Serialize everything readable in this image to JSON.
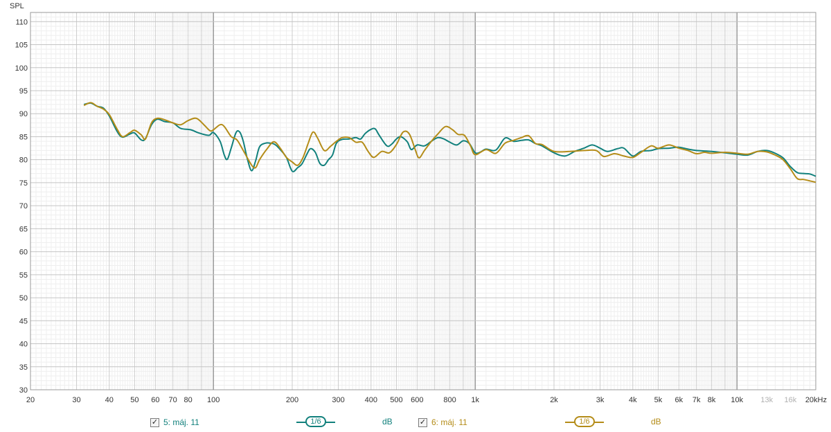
{
  "chart_data": {
    "type": "line",
    "ylabel": "SPL",
    "x_unit_label": "kHz",
    "x_scale": "log",
    "xlim": [
      20,
      20000
    ],
    "ylim": [
      30,
      112
    ],
    "grid": true,
    "y_ticks": [
      30,
      35,
      40,
      45,
      50,
      55,
      60,
      65,
      70,
      75,
      80,
      85,
      90,
      95,
      100,
      105,
      110
    ],
    "x_ticks": [
      {
        "v": 20,
        "label": "20"
      },
      {
        "v": 30,
        "label": "30"
      },
      {
        "v": 40,
        "label": "40"
      },
      {
        "v": 50,
        "label": "50"
      },
      {
        "v": 60,
        "label": "60"
      },
      {
        "v": 70,
        "label": "70"
      },
      {
        "v": 80,
        "label": "80"
      },
      {
        "v": 100,
        "label": "100"
      },
      {
        "v": 200,
        "label": "200"
      },
      {
        "v": 300,
        "label": "300"
      },
      {
        "v": 400,
        "label": "400"
      },
      {
        "v": 500,
        "label": "500"
      },
      {
        "v": 600,
        "label": "600"
      },
      {
        "v": 800,
        "label": "800"
      },
      {
        "v": 1000,
        "label": "1k"
      },
      {
        "v": 2000,
        "label": "2k"
      },
      {
        "v": 3000,
        "label": "3k"
      },
      {
        "v": 4000,
        "label": "4k"
      },
      {
        "v": 5000,
        "label": "5k"
      },
      {
        "v": 6000,
        "label": "6k"
      },
      {
        "v": 7000,
        "label": "7k"
      },
      {
        "v": 8000,
        "label": "8k"
      },
      {
        "v": 10000,
        "label": "10k"
      },
      {
        "v": 13000,
        "label": "13k",
        "faint": true
      },
      {
        "v": 16000,
        "label": "16k",
        "faint": true
      },
      {
        "v": 20000,
        "label": "20kHz"
      }
    ],
    "series": [
      {
        "name": "5: máj. 11",
        "color": "#11807c",
        "smoothing": "1/6",
        "unit": "dB",
        "points": [
          [
            32,
            92.0
          ],
          [
            34,
            92.3
          ],
          [
            36,
            91.6
          ],
          [
            38,
            91.2
          ],
          [
            40,
            89.5
          ],
          [
            43,
            86.0
          ],
          [
            45,
            84.9
          ],
          [
            48,
            85.6
          ],
          [
            50,
            85.8
          ],
          [
            53,
            84.3
          ],
          [
            55,
            84.6
          ],
          [
            58,
            87.6
          ],
          [
            61,
            88.8
          ],
          [
            65,
            88.3
          ],
          [
            70,
            88.0
          ],
          [
            75,
            86.8
          ],
          [
            82,
            86.5
          ],
          [
            88,
            85.8
          ],
          [
            96,
            85.3
          ],
          [
            100,
            85.9
          ],
          [
            106,
            84.0
          ],
          [
            110,
            81.0
          ],
          [
            113,
            80.1
          ],
          [
            117,
            82.6
          ],
          [
            122,
            85.9
          ],
          [
            126,
            86.0
          ],
          [
            130,
            84.0
          ],
          [
            135,
            80.0
          ],
          [
            140,
            77.6
          ],
          [
            145,
            79.8
          ],
          [
            150,
            82.8
          ],
          [
            158,
            83.6
          ],
          [
            165,
            83.6
          ],
          [
            172,
            83.3
          ],
          [
            180,
            82.2
          ],
          [
            190,
            80.5
          ],
          [
            200,
            77.5
          ],
          [
            210,
            78.3
          ],
          [
            218,
            79.1
          ],
          [
            228,
            81.3
          ],
          [
            235,
            82.4
          ],
          [
            245,
            81.6
          ],
          [
            255,
            79.2
          ],
          [
            265,
            78.8
          ],
          [
            275,
            80.0
          ],
          [
            285,
            81.0
          ],
          [
            295,
            83.6
          ],
          [
            310,
            84.4
          ],
          [
            330,
            84.5
          ],
          [
            350,
            84.8
          ],
          [
            365,
            84.5
          ],
          [
            380,
            85.7
          ],
          [
            400,
            86.6
          ],
          [
            415,
            86.7
          ],
          [
            430,
            85.3
          ],
          [
            460,
            83.0
          ],
          [
            480,
            83.4
          ],
          [
            500,
            84.5
          ],
          [
            520,
            85.0
          ],
          [
            550,
            83.9
          ],
          [
            570,
            82.2
          ],
          [
            600,
            83.2
          ],
          [
            640,
            83.0
          ],
          [
            680,
            84.0
          ],
          [
            720,
            84.8
          ],
          [
            760,
            84.5
          ],
          [
            800,
            83.8
          ],
          [
            850,
            83.2
          ],
          [
            900,
            84.1
          ],
          [
            950,
            83.5
          ],
          [
            1000,
            81.5
          ],
          [
            1050,
            81.7
          ],
          [
            1100,
            82.3
          ],
          [
            1200,
            82.1
          ],
          [
            1300,
            84.7
          ],
          [
            1400,
            84.0
          ],
          [
            1500,
            84.2
          ],
          [
            1600,
            84.3
          ],
          [
            1700,
            83.5
          ],
          [
            1800,
            83.0
          ],
          [
            2000,
            81.5
          ],
          [
            2200,
            80.8
          ],
          [
            2400,
            81.8
          ],
          [
            2600,
            82.5
          ],
          [
            2800,
            83.2
          ],
          [
            3000,
            82.5
          ],
          [
            3200,
            81.8
          ],
          [
            3500,
            82.4
          ],
          [
            3700,
            82.5
          ],
          [
            4000,
            80.8
          ],
          [
            4300,
            81.8
          ],
          [
            4700,
            82.0
          ],
          [
            5000,
            82.4
          ],
          [
            5500,
            82.5
          ],
          [
            6000,
            82.7
          ],
          [
            6500,
            82.3
          ],
          [
            7000,
            82.0
          ],
          [
            8000,
            81.8
          ],
          [
            9000,
            81.5
          ],
          [
            10000,
            81.2
          ],
          [
            11000,
            81.0
          ],
          [
            12000,
            81.8
          ],
          [
            13000,
            82.0
          ],
          [
            14000,
            81.4
          ],
          [
            15000,
            80.4
          ],
          [
            16000,
            78.5
          ],
          [
            17000,
            77.2
          ],
          [
            18000,
            77.0
          ],
          [
            19000,
            76.9
          ],
          [
            20000,
            76.4
          ]
        ]
      },
      {
        "name": "6: máj. 11",
        "color": "#b48c18",
        "smoothing": "1/6",
        "unit": "dB",
        "points": [
          [
            32,
            91.8
          ],
          [
            34,
            92.4
          ],
          [
            36,
            91.6
          ],
          [
            38,
            91.0
          ],
          [
            40,
            89.8
          ],
          [
            43,
            86.5
          ],
          [
            45,
            85.0
          ],
          [
            48,
            85.9
          ],
          [
            50,
            86.4
          ],
          [
            53,
            85.4
          ],
          [
            55,
            84.5
          ],
          [
            58,
            88.0
          ],
          [
            61,
            89.0
          ],
          [
            65,
            88.7
          ],
          [
            70,
            88.0
          ],
          [
            75,
            87.6
          ],
          [
            80,
            88.5
          ],
          [
            86,
            89.0
          ],
          [
            92,
            87.6
          ],
          [
            97,
            86.3
          ],
          [
            100,
            86.5
          ],
          [
            106,
            87.6
          ],
          [
            110,
            87.2
          ],
          [
            117,
            85.0
          ],
          [
            123,
            84.3
          ],
          [
            130,
            82.0
          ],
          [
            140,
            78.8
          ],
          [
            145,
            78.3
          ],
          [
            150,
            80.0
          ],
          [
            160,
            82.3
          ],
          [
            170,
            83.9
          ],
          [
            180,
            82.5
          ],
          [
            190,
            80.5
          ],
          [
            200,
            79.5
          ],
          [
            210,
            78.8
          ],
          [
            220,
            80.5
          ],
          [
            230,
            83.5
          ],
          [
            240,
            86.0
          ],
          [
            250,
            84.7
          ],
          [
            265,
            82.0
          ],
          [
            280,
            82.9
          ],
          [
            295,
            84.0
          ],
          [
            310,
            84.8
          ],
          [
            330,
            84.8
          ],
          [
            350,
            83.8
          ],
          [
            370,
            83.8
          ],
          [
            390,
            81.8
          ],
          [
            410,
            80.5
          ],
          [
            440,
            81.8
          ],
          [
            470,
            81.5
          ],
          [
            500,
            83.3
          ],
          [
            530,
            86.0
          ],
          [
            560,
            85.6
          ],
          [
            590,
            82.2
          ],
          [
            610,
            80.4
          ],
          [
            640,
            82.0
          ],
          [
            680,
            84.0
          ],
          [
            720,
            85.6
          ],
          [
            770,
            87.2
          ],
          [
            820,
            86.5
          ],
          [
            860,
            85.5
          ],
          [
            910,
            85.3
          ],
          [
            960,
            83.0
          ],
          [
            1000,
            81.1
          ],
          [
            1100,
            82.2
          ],
          [
            1200,
            81.4
          ],
          [
            1300,
            83.6
          ],
          [
            1400,
            84.2
          ],
          [
            1500,
            84.8
          ],
          [
            1600,
            85.2
          ],
          [
            1700,
            83.5
          ],
          [
            1800,
            83.3
          ],
          [
            2000,
            81.8
          ],
          [
            2300,
            81.8
          ],
          [
            2600,
            82.0
          ],
          [
            2900,
            82.0
          ],
          [
            3100,
            80.7
          ],
          [
            3400,
            81.3
          ],
          [
            3700,
            80.8
          ],
          [
            4000,
            80.5
          ],
          [
            4300,
            81.6
          ],
          [
            4700,
            83.0
          ],
          [
            5000,
            82.5
          ],
          [
            5500,
            83.2
          ],
          [
            6000,
            82.5
          ],
          [
            6500,
            82.0
          ],
          [
            7000,
            81.3
          ],
          [
            7500,
            81.6
          ],
          [
            8000,
            81.4
          ],
          [
            9000,
            81.6
          ],
          [
            10000,
            81.4
          ],
          [
            11000,
            81.2
          ],
          [
            12000,
            81.8
          ],
          [
            13000,
            81.7
          ],
          [
            14000,
            81.0
          ],
          [
            15000,
            80.0
          ],
          [
            16000,
            78.0
          ],
          [
            17000,
            75.9
          ],
          [
            18000,
            75.7
          ],
          [
            19000,
            75.4
          ],
          [
            20000,
            75.1
          ]
        ]
      }
    ]
  },
  "legend": [
    {
      "checked": true,
      "check_glyph": "✓",
      "name": "5: máj. 11",
      "smoothing": "1/6",
      "unit": "dB",
      "color": "#11807c"
    },
    {
      "checked": true,
      "check_glyph": "✓",
      "name": "6: máj. 11",
      "smoothing": "1/6",
      "unit": "dB",
      "color": "#b48c18"
    }
  ]
}
